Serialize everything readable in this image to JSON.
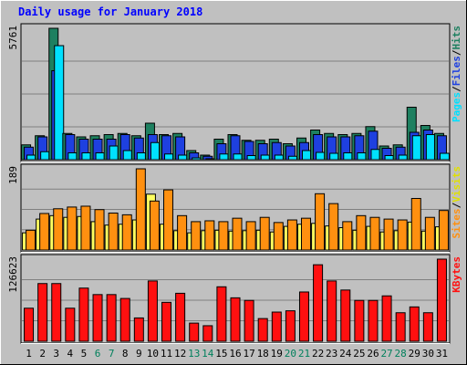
{
  "chart_data": {
    "type": "bar",
    "title": "Daily usage for January 2018",
    "categories": [
      "1",
      "2",
      "3",
      "4",
      "5",
      "6",
      "7",
      "8",
      "9",
      "10",
      "11",
      "12",
      "13",
      "14",
      "15",
      "16",
      "17",
      "18",
      "19",
      "20",
      "21",
      "22",
      "23",
      "24",
      "25",
      "26",
      "27",
      "28",
      "29",
      "30",
      "31"
    ],
    "weekend_days": [
      "6",
      "7",
      "13",
      "14",
      "20",
      "21",
      "27",
      "28"
    ],
    "panels": [
      {
        "max_label": "5761",
        "ylim": [
          0,
          5761
        ],
        "series": [
          {
            "name": "Hits",
            "color": "#1e8060",
            "values": [
              650,
              1050,
              5761,
              1150,
              1000,
              1050,
              1100,
              1150,
              1050,
              1600,
              1100,
              1150,
              400,
              200,
              900,
              1100,
              850,
              850,
              900,
              700,
              950,
              1300,
              1150,
              1100,
              1150,
              1450,
              600,
              650,
              2300,
              1500,
              1150
            ]
          },
          {
            "name": "Files",
            "color": "#1e40e0",
            "values": [
              550,
              1000,
              3900,
              1100,
              900,
              900,
              900,
              1100,
              950,
              1100,
              1050,
              1000,
              300,
              150,
              700,
              1050,
              800,
              700,
              750,
              600,
              750,
              1100,
              1000,
              1000,
              1050,
              1250,
              500,
              550,
              1200,
              1300,
              1050
            ]
          },
          {
            "name": "Pages",
            "color": "#00e0ff",
            "values": [
              200,
              350,
              5000,
              300,
              300,
              300,
              600,
              400,
              300,
              750,
              250,
              200,
              80,
              40,
              250,
              250,
              180,
              200,
              200,
              150,
              400,
              320,
              280,
              300,
              300,
              450,
              180,
              200,
              1050,
              1100,
              280
            ]
          }
        ],
        "legend": [
          "Pages",
          "Files",
          "Hits"
        ]
      },
      {
        "max_label": "189",
        "ylim": [
          0,
          189
        ],
        "series": [
          {
            "name": "Visits",
            "color": "#ffff60",
            "values": [
              40,
              72,
              80,
              76,
              78,
              66,
              58,
              60,
              70,
              130,
              60,
              45,
              40,
              45,
              46,
              44,
              45,
              46,
              42,
              55,
              60,
              62,
              56,
              52,
              46,
              55,
              42,
              45,
              65,
              44,
              54
            ]
          },
          {
            "name": "Sites",
            "color": "#ff9010",
            "values": [
              46,
              85,
              96,
              100,
              102,
              94,
              86,
              82,
              189,
              114,
              140,
              80,
              66,
              68,
              66,
              74,
              66,
              76,
              64,
              70,
              74,
              131,
              108,
              66,
              80,
              76,
              72,
              70,
              120,
              76,
              92
            ]
          }
        ],
        "legend": [
          "Sites",
          "Visits"
        ]
      },
      {
        "max_label": "126623",
        "ylim": [
          0,
          126623
        ],
        "series": [
          {
            "name": "KBytes",
            "color": "#ff1010",
            "values": [
              51000,
              89000,
              89000,
              51000,
              82000,
              72000,
              72000,
              66000,
              36000,
              93000,
              60000,
              74000,
              28000,
              24000,
              84000,
              67000,
              63000,
              35000,
              45000,
              47000,
              76000,
              118000,
              93000,
              79000,
              63000,
              63000,
              70000,
              44000,
              53000,
              44000,
              126623
            ]
          }
        ],
        "legend": [
          "KBytes"
        ]
      }
    ],
    "colors": {
      "background": "#c0c0c0",
      "grid": "#808080",
      "title": "#0000ff",
      "axis_text": "#000000",
      "weekend_text": "#00805c",
      "bar_outline": "#000000"
    }
  }
}
